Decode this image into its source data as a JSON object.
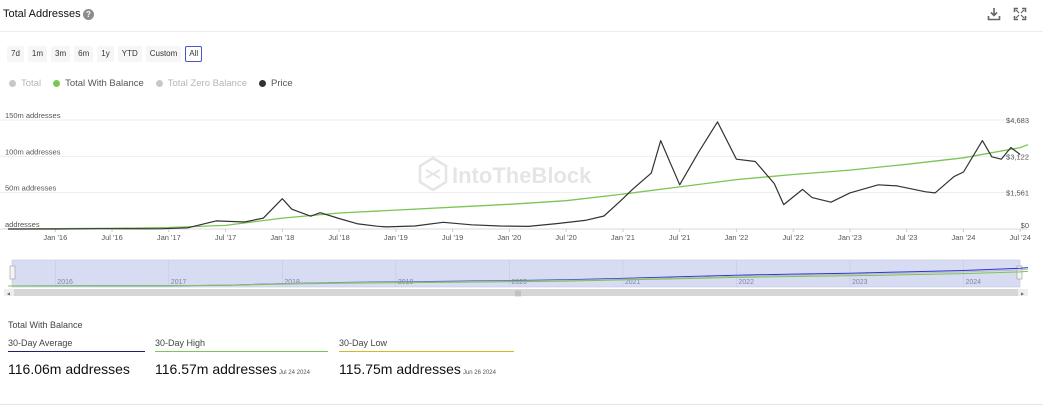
{
  "header": {
    "title": "Total Addresses",
    "help_icon": "help-circle-icon",
    "download_icon": "download-icon",
    "expand_icon": "fullscreen-icon"
  },
  "ranges": [
    "7d",
    "1m",
    "3m",
    "6m",
    "1y",
    "YTD",
    "Custom",
    "All"
  ],
  "active_range": "All",
  "legend": [
    {
      "label": "Total",
      "color": "#c8c8c8",
      "active": false
    },
    {
      "label": "Total With Balance",
      "color": "#7cc552",
      "active": true
    },
    {
      "label": "Total Zero Balance",
      "color": "#c8c8c8",
      "active": false
    },
    {
      "label": "Price",
      "color": "#333333",
      "active": true
    }
  ],
  "watermark": "IntoTheBlock",
  "chart_data": {
    "type": "line",
    "x_ticks": [
      "Jan '16",
      "Jul '16",
      "Jan '17",
      "Jul '17",
      "Jan '18",
      "Jul '18",
      "Jan '19",
      "Jul '19",
      "Jan '20",
      "Jul '20",
      "Jan '21",
      "Jul '21",
      "Jan '22",
      "Jul '22",
      "Jan '23",
      "Jul '23",
      "Jan '24",
      "Jul '24"
    ],
    "y_left_ticks": [
      "150m addresses",
      "100m addresses",
      "50m addresses",
      "addresses"
    ],
    "y_right_ticks": [
      "$4,683",
      "$3,122",
      "$1,561",
      "$0"
    ],
    "ylim_left": [
      0,
      150000000
    ],
    "ylim_right": [
      0,
      4683
    ],
    "grid": true,
    "series": [
      {
        "name": "Total With Balance",
        "axis": "left",
        "color": "#7cc552",
        "x": [
          "2015-08",
          "2016-01",
          "2016-07",
          "2017-01",
          "2017-07",
          "2018-01",
          "2018-07",
          "2019-01",
          "2019-07",
          "2020-01",
          "2020-07",
          "2021-01",
          "2021-07",
          "2022-01",
          "2022-07",
          "2023-01",
          "2023-07",
          "2024-01",
          "2024-07",
          "2024-07-26"
        ],
        "values": [
          0,
          500000,
          1000000,
          2000000,
          5000000,
          15000000,
          22000000,
          26000000,
          30000000,
          34000000,
          39000000,
          48000000,
          58000000,
          68000000,
          75000000,
          81000000,
          89000000,
          98000000,
          112000000,
          116000000
        ]
      },
      {
        "name": "Price",
        "axis": "right",
        "color": "#333333",
        "x": [
          "2015-08",
          "2016-01",
          "2016-06",
          "2016-12",
          "2017-03",
          "2017-06",
          "2017-09",
          "2017-11",
          "2018-01",
          "2018-02",
          "2018-04",
          "2018-05",
          "2018-07",
          "2018-09",
          "2018-11",
          "2018-12",
          "2019-03",
          "2019-06",
          "2019-09",
          "2019-12",
          "2020-03",
          "2020-06",
          "2020-09",
          "2020-11",
          "2021-01",
          "2021-02",
          "2021-04",
          "2021-05",
          "2021-07",
          "2021-09",
          "2021-11",
          "2022-01",
          "2022-03",
          "2022-05",
          "2022-06",
          "2022-08",
          "2022-09",
          "2022-11",
          "2023-01",
          "2023-04",
          "2023-06",
          "2023-09",
          "2023-10",
          "2023-12",
          "2024-01",
          "2024-03",
          "2024-04",
          "2024-05",
          "2024-06",
          "2024-07"
        ],
        "values": [
          1,
          1,
          14,
          8,
          50,
          350,
          300,
          470,
          1300,
          850,
          550,
          700,
          450,
          220,
          120,
          90,
          130,
          290,
          180,
          130,
          110,
          230,
          370,
          560,
          1300,
          1700,
          2400,
          3800,
          1900,
          3300,
          4600,
          3000,
          2900,
          1950,
          1050,
          1700,
          1350,
          1150,
          1550,
          1900,
          1850,
          1600,
          1550,
          2250,
          2450,
          3800,
          3100,
          3000,
          3500,
          3200
        ]
      }
    ]
  },
  "navigator": {
    "year_labels": [
      "2016",
      "2017",
      "2018",
      "2019",
      "2020",
      "2021",
      "2022",
      "2023",
      "2024"
    ]
  },
  "stats": {
    "title": "Total With Balance",
    "items": [
      {
        "label": "30-Day Average",
        "value": "116.06m addresses",
        "date": "",
        "color": "#1c1f75"
      },
      {
        "label": "30-Day High",
        "value": "116.57m addresses",
        "date": "Jul 24 2024",
        "color": "#7cc552"
      },
      {
        "label": "30-Day Low",
        "value": "115.75m addresses",
        "date": "Jun 26 2024",
        "color": "#d4b82c"
      }
    ]
  }
}
